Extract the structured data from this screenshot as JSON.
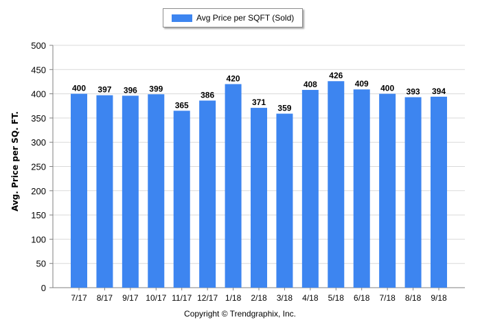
{
  "chart_data": {
    "type": "bar",
    "categories": [
      "7/17",
      "8/17",
      "9/17",
      "10/17",
      "11/17",
      "12/17",
      "1/18",
      "2/18",
      "3/18",
      "4/18",
      "5/18",
      "6/18",
      "7/18",
      "8/18",
      "9/18"
    ],
    "series": [
      {
        "name": "Avg Price per SQFT (Sold)",
        "values": [
          400,
          397,
          396,
          399,
          365,
          386,
          420,
          371,
          359,
          408,
          426,
          409,
          400,
          393,
          394
        ],
        "color": "#3d85f0"
      }
    ],
    "ylabel": "Avg. Price per SQ. FT.",
    "xlabel": "",
    "ylim": [
      0,
      500
    ],
    "yticks": [
      0,
      50,
      100,
      150,
      200,
      250,
      300,
      350,
      400,
      450,
      500
    ],
    "grid": true,
    "legend_position": "top-center"
  },
  "footer": {
    "copyright": "Copyright © Trendgraphix, Inc."
  }
}
